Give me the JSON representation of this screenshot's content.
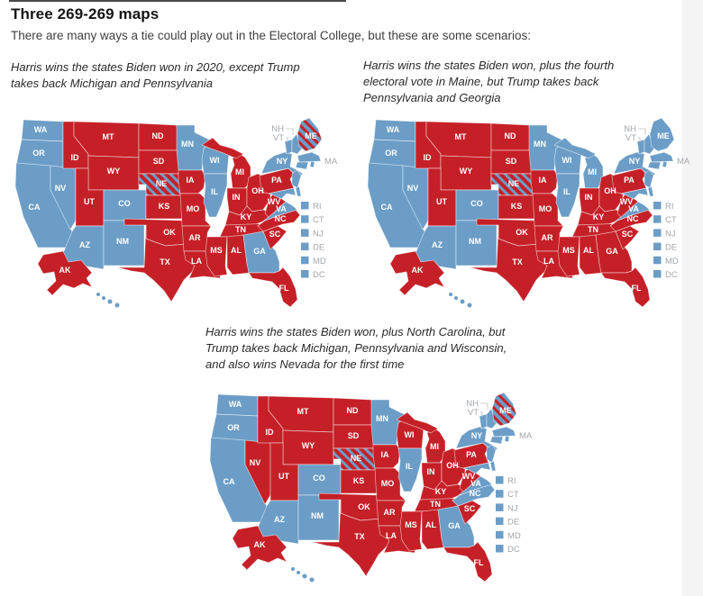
{
  "page": {
    "title": "Three 269-269 maps",
    "subtitle": "There are many ways a tie could play out in the Electoral College, but these are some scenarios:"
  },
  "colors": {
    "dem": "#6b9dc7",
    "rep": "#c52027",
    "neutral_text": "#a3a7ab"
  },
  "legend_states": [
    "RI",
    "CT",
    "NJ",
    "DE",
    "MD",
    "DC"
  ],
  "callout_labels": {
    "nh": "NH",
    "vt": "VT",
    "ma": "MA"
  },
  "maps": [
    {
      "caption": "Harris wins the states Biden won in 2020, except Trump takes back Michigan and Pennsylvania",
      "states": {
        "WA": "dem",
        "OR": "dem",
        "CA": "dem",
        "NV": "dem",
        "AZ": "dem",
        "NM": "dem",
        "CO": "dem",
        "MN": "dem",
        "WI": "dem",
        "IL": "dem",
        "NY": "dem",
        "VA": "dem",
        "GA": "dem",
        "HI": "dem",
        "NJ": "dem",
        "MD": "dem",
        "DE": "dem",
        "VT": "dem",
        "NH": "dem",
        "MA": "dem",
        "CT": "dem",
        "RI": "dem",
        "DC": "dem",
        "ID": "rep",
        "MT": "rep",
        "WY": "rep",
        "UT": "rep",
        "ND": "rep",
        "SD": "rep",
        "KS": "rep",
        "OK": "rep",
        "TX": "rep",
        "IA": "rep",
        "MO": "rep",
        "AR": "rep",
        "LA": "rep",
        "MI": "rep",
        "IN": "rep",
        "OH": "rep",
        "KY": "rep",
        "TN": "rep",
        "MS": "rep",
        "AL": "rep",
        "FL": "rep",
        "SC": "rep",
        "NC": "rep",
        "WV": "rep",
        "PA": "rep",
        "AK": "rep",
        "NE": "split_rep",
        "ME": "split_dem"
      }
    },
    {
      "caption": "Harris wins the states Biden won, plus the fourth electoral vote in Maine, but Trump takes back Pennsylvania and Georgia",
      "states": {
        "WA": "dem",
        "OR": "dem",
        "CA": "dem",
        "NV": "dem",
        "AZ": "dem",
        "NM": "dem",
        "CO": "dem",
        "MN": "dem",
        "WI": "dem",
        "MI": "dem",
        "IL": "dem",
        "NY": "dem",
        "VA": "dem",
        "ME": "dem",
        "HI": "dem",
        "NJ": "dem",
        "MD": "dem",
        "DE": "dem",
        "VT": "dem",
        "NH": "dem",
        "MA": "dem",
        "CT": "dem",
        "RI": "dem",
        "DC": "dem",
        "ID": "rep",
        "MT": "rep",
        "WY": "rep",
        "UT": "rep",
        "ND": "rep",
        "SD": "rep",
        "KS": "rep",
        "OK": "rep",
        "TX": "rep",
        "IA": "rep",
        "MO": "rep",
        "AR": "rep",
        "LA": "rep",
        "IN": "rep",
        "OH": "rep",
        "KY": "rep",
        "TN": "rep",
        "MS": "rep",
        "AL": "rep",
        "GA": "rep",
        "FL": "rep",
        "SC": "rep",
        "NC": "rep",
        "WV": "rep",
        "PA": "rep",
        "AK": "rep",
        "NE": "split_rep"
      }
    },
    {
      "caption": "Harris wins the states Biden won, plus North Carolina, but Trump takes back Michigan, Pennsylvania and Wisconsin, and also wins Nevada for the first time",
      "states": {
        "WA": "dem",
        "OR": "dem",
        "CA": "dem",
        "AZ": "dem",
        "NM": "dem",
        "CO": "dem",
        "MN": "dem",
        "IL": "dem",
        "NY": "dem",
        "VA": "dem",
        "NC": "dem",
        "GA": "dem",
        "HI": "dem",
        "NJ": "dem",
        "MD": "dem",
        "DE": "dem",
        "VT": "dem",
        "NH": "dem",
        "MA": "dem",
        "CT": "dem",
        "RI": "dem",
        "DC": "dem",
        "NV": "rep",
        "ID": "rep",
        "MT": "rep",
        "WY": "rep",
        "UT": "rep",
        "ND": "rep",
        "SD": "rep",
        "KS": "rep",
        "OK": "rep",
        "TX": "rep",
        "IA": "rep",
        "MO": "rep",
        "AR": "rep",
        "LA": "rep",
        "WI": "rep",
        "MI": "rep",
        "IN": "rep",
        "OH": "rep",
        "KY": "rep",
        "TN": "rep",
        "MS": "rep",
        "AL": "rep",
        "FL": "rep",
        "SC": "rep",
        "WV": "rep",
        "PA": "rep",
        "AK": "rep",
        "NE": "split_rep",
        "ME": "split_dem"
      }
    }
  ]
}
